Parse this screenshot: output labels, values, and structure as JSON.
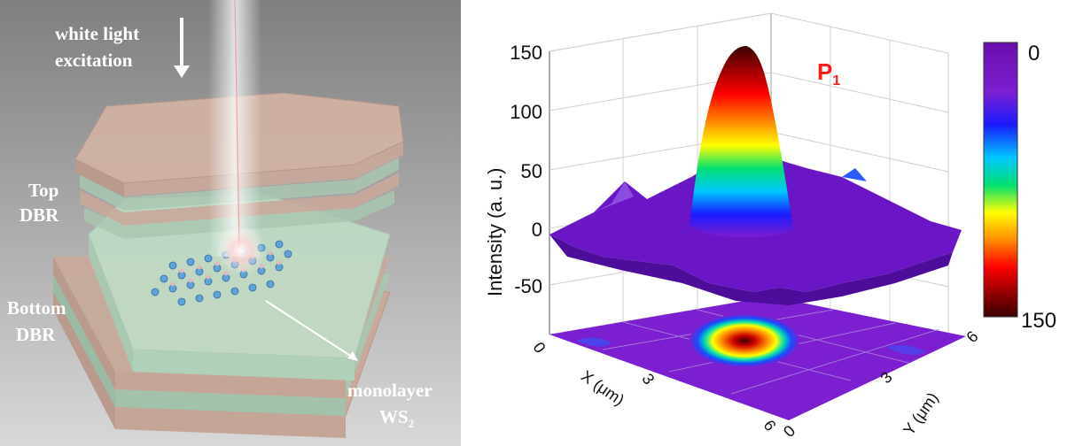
{
  "schematic": {
    "excitation_line1": "white light",
    "excitation_line2": "excitation",
    "top_dbr_line1": "Top",
    "top_dbr_line2": "DBR",
    "bottom_dbr_line1": "Bottom",
    "bottom_dbr_line2": "DBR",
    "material_line1": "monolayer",
    "material_line2_main": "WS",
    "material_line2_sub": "2"
  },
  "plot": {
    "peak_label_main": "P",
    "peak_label_sub": "1",
    "z_axis_label": "Intensity (a. u.)",
    "z_ticks": [
      "150",
      "100",
      "50",
      "0",
      "-50"
    ],
    "x_axis_label": "X (μm)",
    "x_ticks": [
      "0",
      "3",
      "6"
    ],
    "y_axis_label": "Y (μm)",
    "y_ticks": [
      "0",
      "3",
      "6"
    ],
    "colorbar_top": "0",
    "colorbar_bottom": "150"
  },
  "colors": {
    "peak_label": "#ff1a1a",
    "colormap": [
      "#6a0dad",
      "#7b1fd0",
      "#1a1aff",
      "#00c8ff",
      "#00e070",
      "#ffff00",
      "#ff8c00",
      "#ff0000",
      "#8b0000",
      "#3a0000"
    ]
  }
}
